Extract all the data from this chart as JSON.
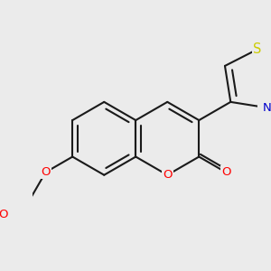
{
  "bg_color": "#ebebeb",
  "bond_color": "#1a1a1a",
  "bond_width": 1.5,
  "atom_colors": {
    "O": "#ff0000",
    "N": "#0000cc",
    "S": "#cccc00"
  },
  "font_size": 9.5,
  "font_size_S": 10.5
}
